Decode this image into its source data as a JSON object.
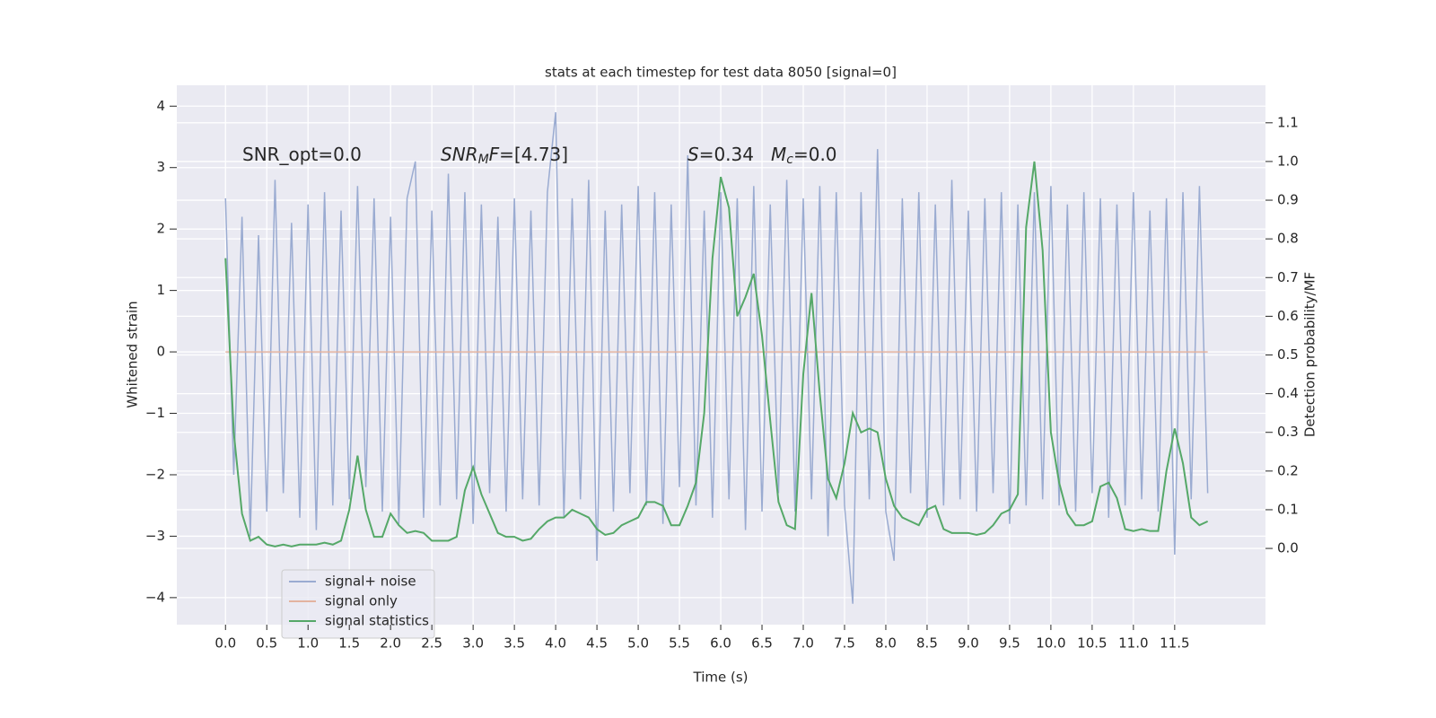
{
  "chart_data": {
    "type": "line",
    "title": "stats at each timestep for test data 8050 [signal=0]",
    "xlabel": "Time (s)",
    "ylabel": "Whitened strain",
    "y2label": "Detection probability/MF",
    "xlim": [
      -0.59,
      12.6
    ],
    "ylim": [
      -4.44,
      4.34
    ],
    "y2lim": [
      -0.197,
      1.197
    ],
    "xticks": [
      {
        "value": 0,
        "label": "0.0"
      },
      0.5,
      {
        "value": 1,
        "label": "1.0"
      },
      1.5,
      {
        "value": 2,
        "label": "2.0"
      },
      2.5,
      {
        "value": 3,
        "label": "3.0"
      },
      3.5,
      {
        "value": 4,
        "label": "4.0"
      },
      4.5,
      {
        "value": 5,
        "label": "5.0"
      },
      5.5,
      {
        "value": 6,
        "label": "6.0"
      },
      6.5,
      {
        "value": 7,
        "label": "7.0"
      },
      7.5,
      {
        "value": 8,
        "label": "8.0"
      },
      8.5,
      {
        "value": 9,
        "label": "9.0"
      },
      9.5,
      {
        "value": 10,
        "label": "10.0"
      },
      10.5,
      {
        "value": 11,
        "label": "11.0"
      },
      11.5
    ],
    "yticks": [
      {
        "value": -4,
        "label": "−4"
      },
      {
        "value": -3,
        "label": "−3"
      },
      {
        "value": -2,
        "label": "−2"
      },
      {
        "value": -1,
        "label": "−1"
      },
      0,
      1,
      2,
      3,
      4
    ],
    "y2ticks": [
      {
        "value": 0,
        "label": "0.0"
      },
      0.1,
      0.2,
      0.3,
      0.4,
      0.5,
      0.6,
      0.7,
      0.8,
      0.9,
      {
        "value": 1,
        "label": "1.0"
      },
      1.1
    ],
    "grid": true,
    "legend": "lower left",
    "annotations": [
      [
        {
          "text": "SNR_opt=0.0"
        }
      ],
      [
        {
          "text": "SNR",
          "italic": true
        },
        {
          "text": "M",
          "italic": true,
          "sub": true
        },
        {
          "text": "F",
          "italic": true
        },
        {
          "text": "=[4.73]"
        }
      ],
      [
        {
          "text": "S",
          "italic": true
        },
        {
          "text": "=0.34"
        }
      ],
      [
        {
          "text": "M",
          "italic": true
        },
        {
          "text": "c",
          "italic": true,
          "sub": true
        },
        {
          "text": "=0.0"
        }
      ]
    ],
    "x": [
      0,
      0.1,
      0.2,
      0.3,
      0.4,
      0.5,
      0.6,
      0.7,
      0.8,
      0.9,
      1,
      1.1,
      1.2,
      1.3,
      1.4,
      1.5,
      1.6,
      1.7,
      1.8,
      1.9,
      2,
      2.1,
      2.2,
      2.3,
      2.4,
      2.5,
      2.6,
      2.7,
      2.8,
      2.9,
      3,
      3.1,
      3.2,
      3.3,
      3.4,
      3.5,
      3.6,
      3.7,
      3.8,
      3.9,
      4,
      4.1,
      4.2,
      4.3,
      4.4,
      4.5,
      4.6,
      4.7,
      4.8,
      4.9,
      5,
      5.1,
      5.2,
      5.3,
      5.4,
      5.5,
      5.6,
      5.7,
      5.8,
      5.9,
      6,
      6.1,
      6.2,
      6.3,
      6.4,
      6.5,
      6.6,
      6.7,
      6.8,
      6.9,
      7,
      7.1,
      7.2,
      7.3,
      7.4,
      7.5,
      7.6,
      7.7,
      7.8,
      7.9,
      8,
      8.1,
      8.2,
      8.3,
      8.4,
      8.5,
      8.6,
      8.7,
      8.8,
      8.9,
      9,
      9.1,
      9.2,
      9.3,
      9.4,
      9.5,
      9.6,
      9.7,
      9.8,
      9.9,
      10,
      10.1,
      10.2,
      10.3,
      10.4,
      10.5,
      10.6,
      10.7,
      10.8,
      10.9,
      11,
      11.1,
      11.2,
      11.3,
      11.4,
      11.5,
      11.6,
      11.7,
      11.8,
      11.9
    ],
    "series": [
      {
        "name": "signal+ noise",
        "color": "#9aabd1",
        "values": [
          2.5,
          -2.0,
          2.2,
          -3.0,
          1.9,
          -2.6,
          2.8,
          -2.3,
          2.1,
          -2.7,
          2.4,
          -2.9,
          2.6,
          -2.5,
          2.3,
          -2.4,
          2.7,
          -2.2,
          2.5,
          -2.6,
          2.2,
          -2.8,
          2.5,
          3.1,
          -2.7,
          2.3,
          -2.5,
          2.9,
          -2.4,
          2.6,
          -2.8,
          2.4,
          -2.3,
          2.2,
          -2.6,
          2.5,
          -2.4,
          2.3,
          -2.5,
          2.6,
          3.9,
          -2.7,
          2.5,
          -2.4,
          2.8,
          -3.4,
          2.3,
          -2.6,
          2.4,
          -2.3,
          2.7,
          -2.5,
          2.6,
          -2.8,
          2.4,
          -2.2,
          3.2,
          -2.5,
          2.3,
          -2.7,
          2.6,
          -2.4,
          2.5,
          -2.9,
          2.7,
          -2.6,
          2.4,
          -2.3,
          2.8,
          -2.6,
          2.5,
          -2.4,
          2.7,
          -3.0,
          2.6,
          -2.5,
          -4.1,
          2.6,
          -2.4,
          3.3,
          -2.6,
          -3.4,
          2.5,
          -2.3,
          2.6,
          -2.7,
          2.4,
          -2.5,
          2.8,
          -2.4,
          2.3,
          -2.6,
          2.5,
          -2.3,
          2.6,
          -2.8,
          2.4,
          -2.5,
          2.6,
          -2.4,
          2.7,
          -2.5,
          2.4,
          -2.6,
          2.6,
          -2.3,
          2.5,
          -2.7,
          2.4,
          -2.5,
          2.6,
          -2.4,
          2.3,
          -2.6,
          2.5,
          -3.3,
          2.6,
          -2.4,
          2.7,
          -2.3
        ]
      },
      {
        "name": "signal only",
        "color": "#e3b3a0",
        "values": [
          0,
          0,
          0,
          0,
          0,
          0,
          0,
          0,
          0,
          0,
          0,
          0,
          0,
          0,
          0,
          0,
          0,
          0,
          0,
          0,
          0,
          0,
          0,
          0,
          0,
          0,
          0,
          0,
          0,
          0,
          0,
          0,
          0,
          0,
          0,
          0,
          0,
          0,
          0,
          0,
          0,
          0,
          0,
          0,
          0,
          0,
          0,
          0,
          0,
          0,
          0,
          0,
          0,
          0,
          0,
          0,
          0,
          0,
          0,
          0,
          0,
          0,
          0,
          0,
          0,
          0,
          0,
          0,
          0,
          0,
          0,
          0,
          0,
          0,
          0,
          0,
          0,
          0,
          0,
          0,
          0,
          0,
          0,
          0,
          0,
          0,
          0,
          0,
          0,
          0,
          0,
          0,
          0,
          0,
          0,
          0,
          0,
          0,
          0,
          0,
          0,
          0,
          0,
          0,
          0,
          0,
          0,
          0,
          0,
          0,
          0,
          0,
          0,
          0,
          0,
          0,
          0,
          0,
          0,
          0
        ]
      },
      {
        "name": "signal statistics",
        "color": "#55a868",
        "axis": "y2",
        "values": [
          0.75,
          0.3,
          0.09,
          0.02,
          0.03,
          0.01,
          0.005,
          0.01,
          0.005,
          0.01,
          0.01,
          0.01,
          0.015,
          0.01,
          0.02,
          0.1,
          0.24,
          0.1,
          0.03,
          0.03,
          0.09,
          0.06,
          0.04,
          0.045,
          0.04,
          0.02,
          0.02,
          0.02,
          0.03,
          0.15,
          0.21,
          0.14,
          0.09,
          0.04,
          0.03,
          0.03,
          0.02,
          0.025,
          0.05,
          0.07,
          0.08,
          0.08,
          0.1,
          0.09,
          0.08,
          0.05,
          0.035,
          0.04,
          0.06,
          0.07,
          0.08,
          0.12,
          0.12,
          0.11,
          0.06,
          0.06,
          0.11,
          0.17,
          0.35,
          0.75,
          0.96,
          0.88,
          0.6,
          0.65,
          0.71,
          0.55,
          0.33,
          0.12,
          0.06,
          0.05,
          0.45,
          0.66,
          0.4,
          0.18,
          0.13,
          0.22,
          0.35,
          0.3,
          0.31,
          0.3,
          0.18,
          0.11,
          0.08,
          0.07,
          0.06,
          0.1,
          0.11,
          0.05,
          0.04,
          0.04,
          0.04,
          0.035,
          0.04,
          0.06,
          0.09,
          0.1,
          0.14,
          0.83,
          1.0,
          0.77,
          0.3,
          0.17,
          0.09,
          0.06,
          0.06,
          0.07,
          0.16,
          0.17,
          0.13,
          0.05,
          0.045,
          0.05,
          0.045,
          0.045,
          0.2,
          0.31,
          0.22,
          0.08,
          0.06,
          0.07
        ]
      }
    ]
  }
}
